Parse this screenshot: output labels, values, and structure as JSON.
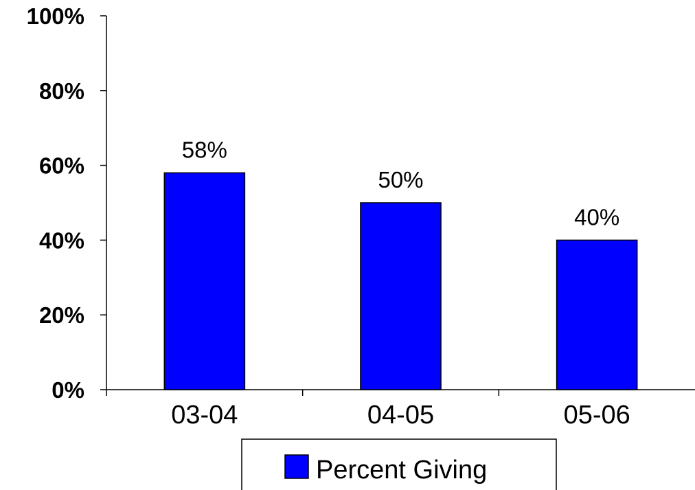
{
  "chart_data": {
    "type": "bar",
    "categories": [
      "03-04",
      "04-05",
      "05-06"
    ],
    "series": [
      {
        "name": "Percent Giving",
        "values": [
          58,
          50,
          40
        ],
        "color": "#0000ff"
      }
    ],
    "data_labels": [
      "58%",
      "50%",
      "40%"
    ],
    "ylim": [
      0,
      100
    ],
    "y_ticks": [
      0,
      20,
      40,
      60,
      80,
      100
    ],
    "y_tick_labels": [
      "0%",
      "20%",
      "40%",
      "60%",
      "80%",
      "100%"
    ],
    "title": "",
    "xlabel": "",
    "ylabel": "",
    "grid": false,
    "legend_position": "bottom"
  }
}
